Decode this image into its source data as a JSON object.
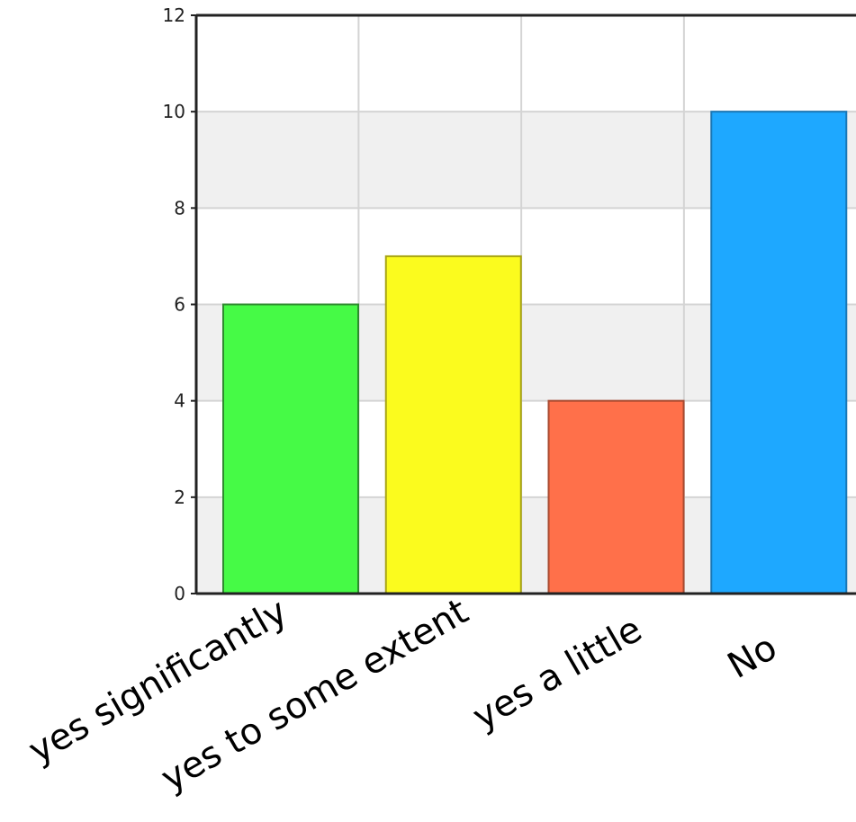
{
  "chart_data": {
    "type": "bar",
    "categories": [
      "yes significantly",
      "yes to some extent",
      "yes a little",
      "No"
    ],
    "values": [
      6,
      7,
      4,
      10
    ],
    "ylim": [
      0,
      12
    ],
    "yticks": [
      0,
      2,
      4,
      6,
      8,
      10,
      12
    ],
    "grid": true,
    "colors": {
      "bars": [
        "#46fa46",
        "#fbfb1e",
        "#ff704a",
        "#1ea8ff"
      ],
      "bar_strokes": [
        "#2f8a2f",
        "#a8a414",
        "#a84a30",
        "#1877b6"
      ],
      "band_alt": "#f0f0f0",
      "grid": "#d4d4d4",
      "axis": "#222222"
    }
  }
}
